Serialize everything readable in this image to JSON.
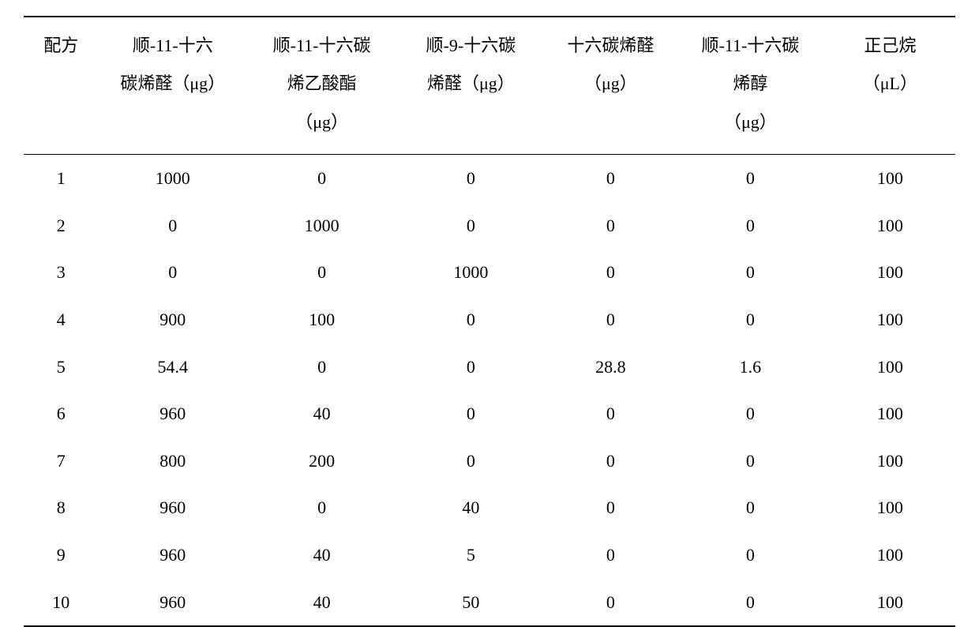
{
  "table": {
    "type": "table",
    "background_color": "#ffffff",
    "border_color": "#000000",
    "font_size": 22,
    "header_font_size": 22,
    "font_family": "SimSun",
    "text_align": "center",
    "top_border_width": 2,
    "header_bottom_border_width": 1.5,
    "bottom_border_width": 2,
    "line_height_header": 2.2,
    "line_height_body": 1.8,
    "column_widths_percent": [
      8,
      16,
      16,
      16,
      14,
      16,
      14
    ],
    "columns": [
      "配方",
      "顺-11-十六\n碳烯醛（μg）",
      "顺-11-十六碳\n烯乙酸酯\n（μg）",
      "顺-9-十六碳\n烯醛（μg）",
      "十六碳烯醛\n（μg）",
      "顺-11-十六碳\n烯醇\n（μg）",
      "正己烷\n（μL）"
    ],
    "rows": [
      [
        "1",
        "1000",
        "0",
        "0",
        "0",
        "0",
        "100"
      ],
      [
        "2",
        "0",
        "1000",
        "0",
        "0",
        "0",
        "100"
      ],
      [
        "3",
        "0",
        "0",
        "1000",
        "0",
        "0",
        "100"
      ],
      [
        "4",
        "900",
        "100",
        "0",
        "0",
        "0",
        "100"
      ],
      [
        "5",
        "54.4",
        "0",
        "0",
        "28.8",
        "1.6",
        "100"
      ],
      [
        "6",
        "960",
        "40",
        "0",
        "0",
        "0",
        "100"
      ],
      [
        "7",
        "800",
        "200",
        "0",
        "0",
        "0",
        "100"
      ],
      [
        "8",
        "960",
        "0",
        "40",
        "0",
        "0",
        "100"
      ],
      [
        "9",
        "960",
        "40",
        "5",
        "0",
        "0",
        "100"
      ],
      [
        "10",
        "960",
        "40",
        "50",
        "0",
        "0",
        "100"
      ]
    ]
  }
}
